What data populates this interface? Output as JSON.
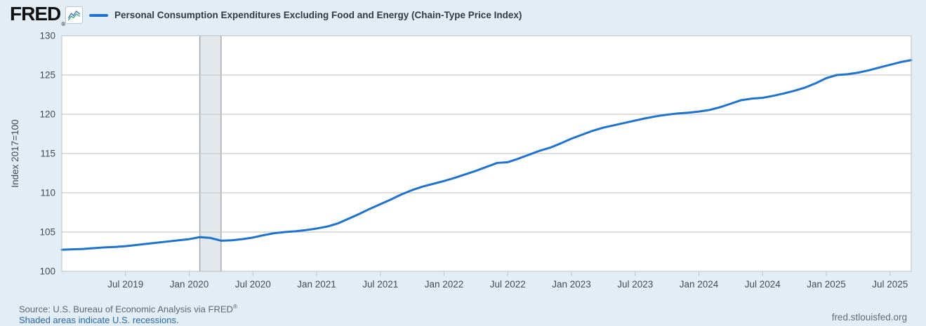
{
  "header": {
    "logo_text": "FRED",
    "logo_registered": "®",
    "legend_label": "Personal Consumption Expenditures Excluding Food and Energy (Chain-Type Price Index)"
  },
  "footer": {
    "source_prefix": "Source: U.S. Bureau of Economic Analysis via FRED",
    "source_registered": "®",
    "recession_note": "Shaded areas indicate U.S. recessions.",
    "site_link": "fred.stlouisfed.org"
  },
  "colors": {
    "background": "#e3edf6",
    "plot_bg": "#ffffff",
    "plot_border": "#b9bfc4",
    "grid": "#c9c9c9",
    "line": "#1e73d2",
    "recession_fill": "#e3e8ec",
    "recession_edge": "#9aa0a5",
    "tick": "#b9cdde",
    "axis_text": "#444b52",
    "legend_text": "#333a40",
    "logo_text": "#121212",
    "source_text": "#5d666d",
    "link": "#2368a4",
    "site_link": "#626d78",
    "icon_line_blue": "#4477bb",
    "icon_line_green": "#4aa98b"
  },
  "chart_data": {
    "type": "line",
    "title": "Personal Consumption Expenditures Excluding Food and Energy (Chain-Type Price Index)",
    "ylabel": "Index 2017=100",
    "ylim": [
      100,
      130
    ],
    "yticks": [
      100,
      105,
      110,
      115,
      120,
      125,
      130
    ],
    "grid": true,
    "legend_position": "top-left",
    "x_unit": "month",
    "x_start_label": "Jan 2019",
    "x_end_label": "Sep 2025",
    "xticks": [
      {
        "month_index": 6,
        "label": "Jul 2019"
      },
      {
        "month_index": 12,
        "label": "Jan 2020"
      },
      {
        "month_index": 18,
        "label": "Jul 2020"
      },
      {
        "month_index": 24,
        "label": "Jan 2021"
      },
      {
        "month_index": 30,
        "label": "Jul 2021"
      },
      {
        "month_index": 36,
        "label": "Jan 2022"
      },
      {
        "month_index": 42,
        "label": "Jul 2022"
      },
      {
        "month_index": 48,
        "label": "Jan 2023"
      },
      {
        "month_index": 54,
        "label": "Jul 2023"
      },
      {
        "month_index": 60,
        "label": "Jan 2024"
      },
      {
        "month_index": 66,
        "label": "Jul 2024"
      },
      {
        "month_index": 72,
        "label": "Jan 2025"
      },
      {
        "month_index": 78,
        "label": "Jul 2025"
      }
    ],
    "recessions": [
      {
        "start_month_index": 13,
        "end_month_index": 15
      }
    ],
    "series": [
      {
        "name": "Personal Consumption Expenditures Excluding Food and Energy (Chain-Type Price Index)",
        "color": "#1e73d2",
        "values": [
          102.75,
          102.8,
          102.85,
          102.95,
          103.05,
          103.1,
          103.2,
          103.35,
          103.5,
          103.65,
          103.8,
          103.95,
          104.1,
          104.35,
          104.25,
          103.9,
          103.95,
          104.1,
          104.3,
          104.6,
          104.85,
          105.0,
          105.1,
          105.25,
          105.45,
          105.7,
          106.1,
          106.7,
          107.3,
          107.95,
          108.55,
          109.15,
          109.8,
          110.35,
          110.8,
          111.15,
          111.5,
          111.9,
          112.35,
          112.8,
          113.3,
          113.8,
          113.9,
          114.35,
          114.85,
          115.35,
          115.75,
          116.3,
          116.9,
          117.4,
          117.9,
          118.3,
          118.6,
          118.9,
          119.2,
          119.5,
          119.75,
          119.95,
          120.1,
          120.2,
          120.35,
          120.55,
          120.9,
          121.35,
          121.8,
          122.0,
          122.1,
          122.35,
          122.65,
          123.0,
          123.4,
          123.95,
          124.6,
          125.0,
          125.1,
          125.3,
          125.6,
          125.95,
          126.3,
          126.65,
          126.9
        ]
      }
    ]
  }
}
